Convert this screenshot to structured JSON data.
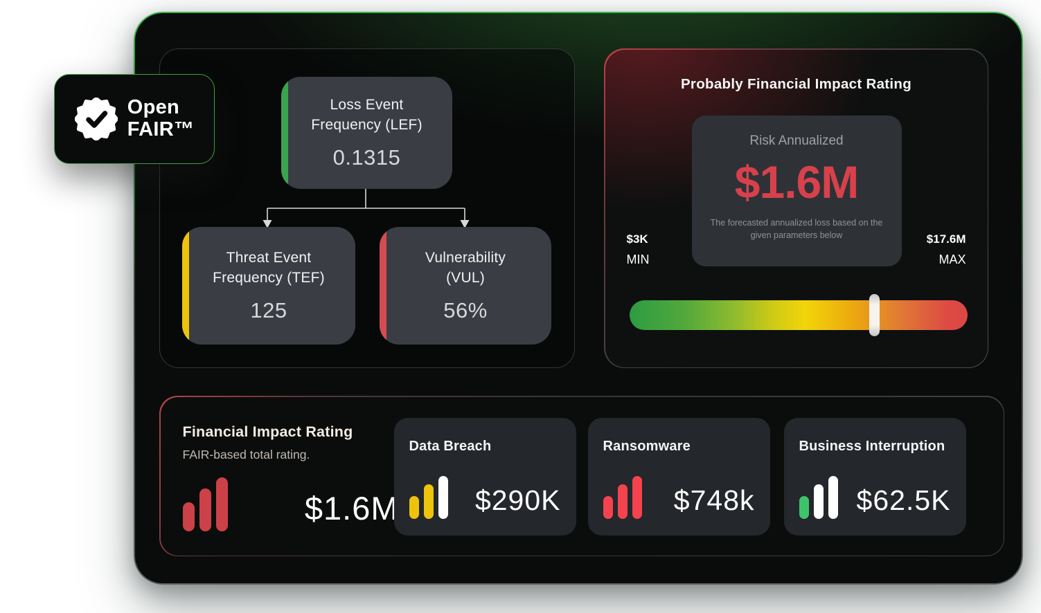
{
  "badge": {
    "line1": "Open",
    "line2": "FAIR™",
    "icon": "verified-seal-icon"
  },
  "parameters": {
    "lef": {
      "title_line1": "Loss Event",
      "title_line2": "Frequency (LEF)",
      "value": "0.1315",
      "accent": "#3aa34d"
    },
    "tef": {
      "title_line1": "Threat Event",
      "title_line2": "Frequency (TEF)",
      "value": "125",
      "accent": "#eec30b"
    },
    "vul": {
      "title_line1": "Vulnerability",
      "title_line2": "(VUL)",
      "value": "56%",
      "accent": "#d64b52"
    }
  },
  "impact_panel": {
    "title": "Probably Financial Impact Rating",
    "risk_card": {
      "label": "Risk Annualized",
      "value": "$1.6M",
      "description": "The forecasted annualized loss based on the given parameters below"
    },
    "min": {
      "value": "$3K",
      "label": "MIN"
    },
    "max": {
      "value": "$17.6M",
      "label": "MAX"
    },
    "slider": {
      "position_pct": 72.5,
      "gradient": [
        "#2d9c43",
        "#f2d50a",
        "#db4743"
      ]
    }
  },
  "summary_panel": {
    "title": "Financial Impact Rating",
    "subtitle": "FAIR-based total rating.",
    "total_value": "$1.6M",
    "total_bars": [
      "#cc4147",
      "#cc4147",
      "#cc4147"
    ],
    "cards": [
      {
        "title": "Data Breach",
        "value": "$290K",
        "bars": [
          "#eec30b",
          "#eec30b",
          "#ffffff"
        ]
      },
      {
        "title": "Ransomware",
        "value": "$748k",
        "bars": [
          "#f4434f",
          "#f4434f",
          "#f4434f"
        ]
      },
      {
        "title": "Business Interruption",
        "value": "$62.5K",
        "bars": [
          "#3dc36b",
          "#ffffff",
          "#ffffff"
        ]
      }
    ]
  }
}
